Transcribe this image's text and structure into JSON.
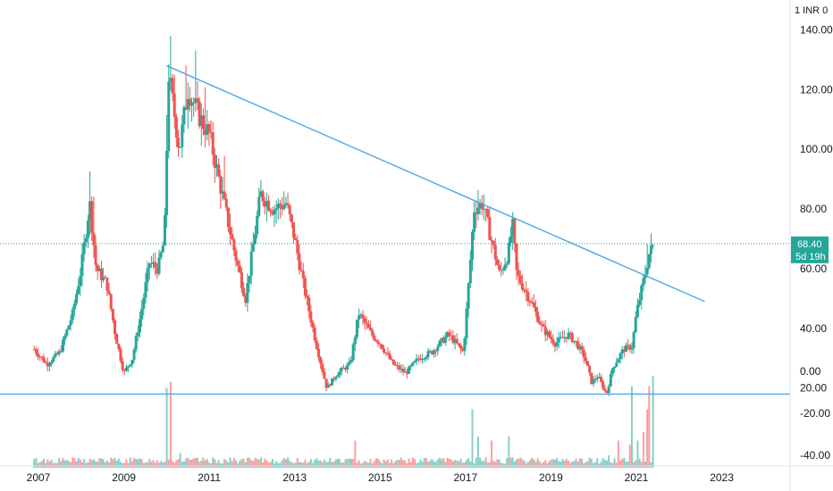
{
  "currency_label": "1 INR 0",
  "price_badge": {
    "value": "68.40",
    "countdown": "5d 19h"
  },
  "colors": {
    "up": "#26a69a",
    "down": "#ef5350",
    "trendline": "#4ea7e8",
    "lastprice_line": "#26a69a",
    "axis_text": "#131722",
    "axis_line": "#e0e3eb"
  },
  "chart_data": {
    "type": "candlestick",
    "x_range": [
      2006.1,
      2024.6
    ],
    "price_axis": {
      "ticks": [
        "140.00",
        "120.00",
        "100.00",
        "80.00",
        "60.00",
        "40.00",
        "20.00"
      ],
      "values": [
        140,
        120,
        100,
        80,
        60,
        40,
        20
      ],
      "ylim": [
        -5.5,
        150
      ]
    },
    "volume_axis": {
      "ticks": [
        "0.00",
        "-20.00",
        "-40.00"
      ],
      "values": [
        0,
        -20,
        -40
      ],
      "ylim": [
        -46,
        12
      ]
    },
    "x_ticks": [
      {
        "label": "2007",
        "x": 2007
      },
      {
        "label": "2009",
        "x": 2009
      },
      {
        "label": "2011",
        "x": 2011
      },
      {
        "label": "2013",
        "x": 2013
      },
      {
        "label": "2015",
        "x": 2015
      },
      {
        "label": "2017",
        "x": 2017
      },
      {
        "label": "2019",
        "x": 2019
      },
      {
        "label": "2021",
        "x": 2021
      },
      {
        "label": "2023",
        "x": 2023
      }
    ],
    "last_price": 68.4,
    "trendlines": [
      {
        "name": "descending-resistance",
        "from": [
          2010.0,
          128
        ],
        "to": [
          2022.6,
          49
        ]
      },
      {
        "name": "horizontal-support",
        "from": [
          2006.1,
          18
        ],
        "to": [
          2024.6,
          18
        ]
      }
    ],
    "price_path": [
      [
        2006.9,
        33
      ],
      [
        2007.2,
        28
      ],
      [
        2007.5,
        32
      ],
      [
        2007.8,
        45
      ],
      [
        2008.0,
        60
      ],
      [
        2008.2,
        82
      ],
      [
        2008.35,
        60
      ],
      [
        2008.6,
        55
      ],
      [
        2008.8,
        38
      ],
      [
        2009.0,
        25
      ],
      [
        2009.2,
        30
      ],
      [
        2009.4,
        45
      ],
      [
        2009.6,
        62
      ],
      [
        2009.8,
        60
      ],
      [
        2009.95,
        70
      ],
      [
        2010.05,
        125
      ],
      [
        2010.3,
        100
      ],
      [
        2010.5,
        120
      ],
      [
        2010.8,
        110
      ],
      [
        2011.0,
        105
      ],
      [
        2011.3,
        85
      ],
      [
        2011.6,
        65
      ],
      [
        2011.85,
        50
      ],
      [
        2012.0,
        65
      ],
      [
        2012.2,
        85
      ],
      [
        2012.5,
        80
      ],
      [
        2012.8,
        82
      ],
      [
        2013.0,
        70
      ],
      [
        2013.2,
        55
      ],
      [
        2013.5,
        35
      ],
      [
        2013.75,
        20
      ],
      [
        2014.0,
        25
      ],
      [
        2014.3,
        28
      ],
      [
        2014.5,
        45
      ],
      [
        2014.8,
        38
      ],
      [
        2015.0,
        35
      ],
      [
        2015.3,
        28
      ],
      [
        2015.6,
        25
      ],
      [
        2015.9,
        30
      ],
      [
        2016.2,
        32
      ],
      [
        2016.6,
        38
      ],
      [
        2016.95,
        32
      ],
      [
        2017.1,
        60
      ],
      [
        2017.2,
        80
      ],
      [
        2017.4,
        82
      ],
      [
        2017.6,
        70
      ],
      [
        2017.8,
        58
      ],
      [
        2018.0,
        65
      ],
      [
        2018.1,
        75
      ],
      [
        2018.2,
        58
      ],
      [
        2018.5,
        50
      ],
      [
        2018.8,
        40
      ],
      [
        2019.1,
        35
      ],
      [
        2019.4,
        38
      ],
      [
        2019.6,
        35
      ],
      [
        2019.8,
        30
      ],
      [
        2019.95,
        22
      ],
      [
        2020.1,
        24
      ],
      [
        2020.3,
        18
      ],
      [
        2020.45,
        27
      ],
      [
        2020.7,
        33
      ],
      [
        2020.9,
        34
      ],
      [
        2021.0,
        45
      ],
      [
        2021.2,
        58
      ],
      [
        2021.3,
        65
      ],
      [
        2021.42,
        68.4
      ]
    ],
    "spike_bars": [
      [
        2010.0,
        12
      ],
      [
        2010.1,
        14
      ],
      [
        2010.45,
        14
      ],
      [
        2010.7,
        16
      ],
      [
        2010.9,
        14
      ],
      [
        2011.35,
        12
      ],
      [
        2008.2,
        10
      ],
      [
        2008.3,
        12
      ],
      [
        2017.3,
        6
      ],
      [
        2021.25,
        8
      ],
      [
        2021.33,
        4
      ]
    ],
    "volume_spikes": [
      [
        2010.0,
        -8
      ],
      [
        2010.1,
        -5
      ],
      [
        2010.3,
        -39
      ],
      [
        2014.4,
        -33
      ],
      [
        2017.15,
        -18
      ],
      [
        2017.3,
        -31
      ],
      [
        2017.6,
        -33
      ],
      [
        2018.0,
        -31
      ],
      [
        2020.35,
        -40
      ],
      [
        2020.6,
        -33
      ],
      [
        2020.85,
        -35
      ],
      [
        2020.9,
        -7
      ],
      [
        2021.05,
        -33
      ],
      [
        2021.15,
        -29
      ],
      [
        2021.25,
        -18
      ],
      [
        2021.32,
        -7
      ],
      [
        2021.38,
        -2
      ],
      [
        2021.44,
        -3
      ],
      [
        2021.5,
        -30
      ]
    ]
  }
}
